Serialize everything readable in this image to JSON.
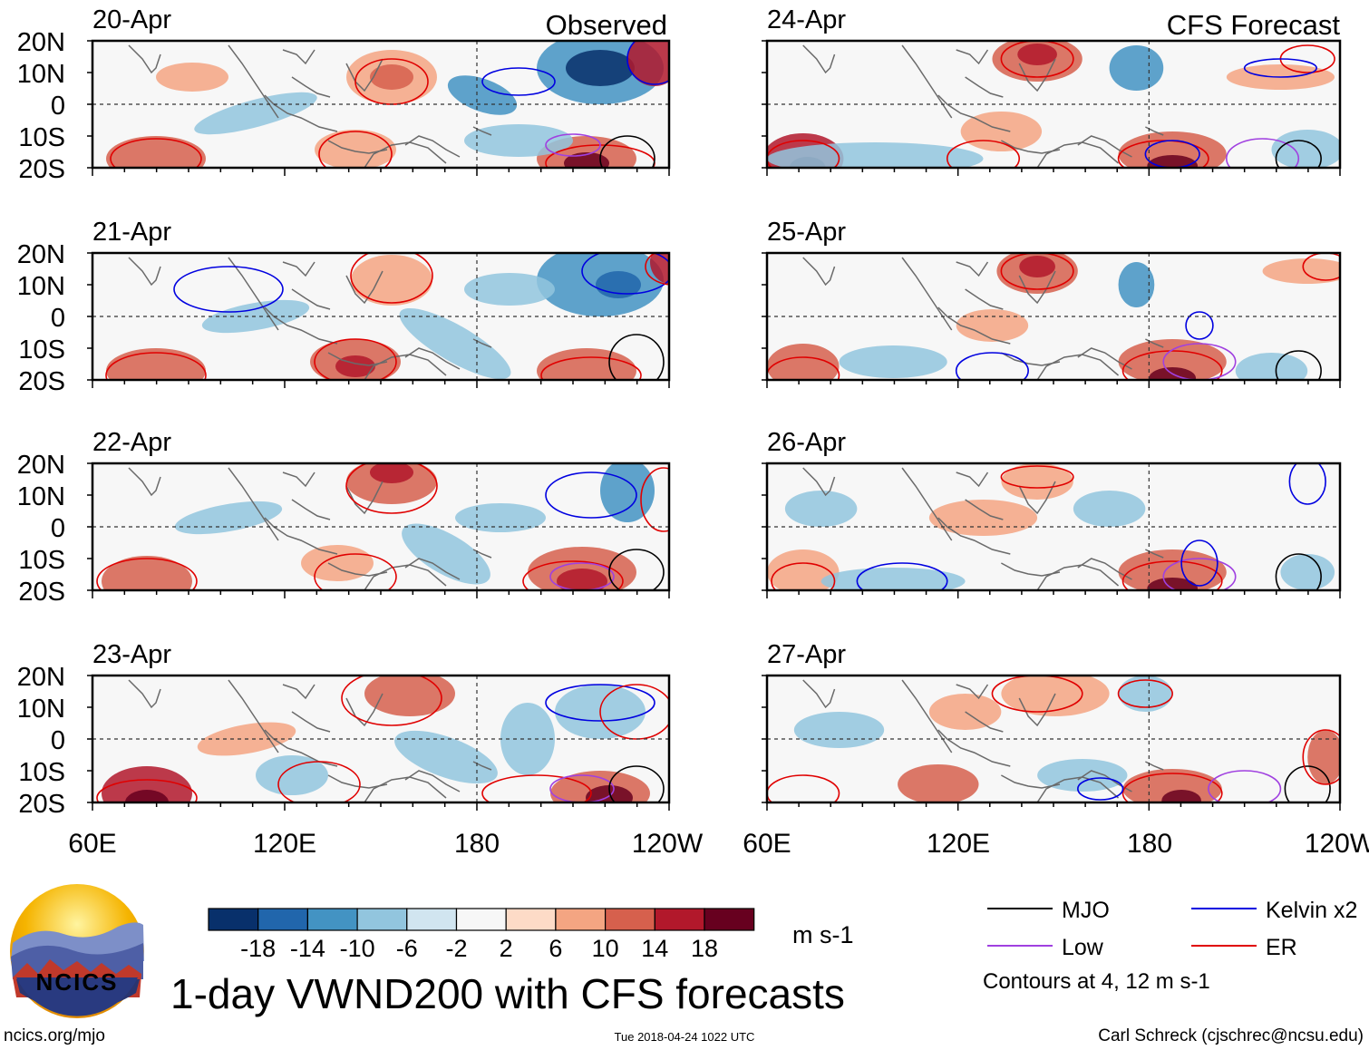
{
  "header": {
    "observed_label": "Observed",
    "forecast_label": "CFS Forecast"
  },
  "observed_panels": [
    {
      "date": "20-Apr"
    },
    {
      "date": "21-Apr"
    },
    {
      "date": "22-Apr"
    },
    {
      "date": "23-Apr"
    }
  ],
  "forecast_panels": [
    {
      "date": "24-Apr"
    },
    {
      "date": "25-Apr"
    },
    {
      "date": "26-Apr"
    },
    {
      "date": "27-Apr"
    }
  ],
  "y_ticks": [
    "20N",
    "10N",
    "0",
    "10S",
    "20S"
  ],
  "x_ticks": [
    "60E",
    "120E",
    "180",
    "120W"
  ],
  "colorbar": {
    "colors": [
      "#08306b",
      "#2166ac",
      "#4393c3",
      "#92c5de",
      "#d1e5f0",
      "#f7f7f7",
      "#fddbc7",
      "#f4a582",
      "#d6604d",
      "#b2182b",
      "#67001f"
    ],
    "ticks": [
      "-18",
      "-14",
      "-10",
      "-6",
      "-2",
      "2",
      "6",
      "10",
      "14",
      "18"
    ],
    "unit": "m s-1"
  },
  "legend": {
    "items": [
      {
        "label": "MJO",
        "color": "#000000"
      },
      {
        "label": "Kelvin x2",
        "color": "#0000e0"
      },
      {
        "label": "Low",
        "color": "#a040e0"
      },
      {
        "label": "ER",
        "color": "#e00000"
      }
    ],
    "note": "Contours at 4, 12 m s-1"
  },
  "footer": {
    "title": "1-day VWND200 with CFS forecasts",
    "logo_text": "NCICS",
    "website": "ncics.org/mjo",
    "timestamp": "Tue 2018-04-24 1022 UTC",
    "credit": "Carl Schreck (cjschrec@ncsu.edu)"
  }
}
